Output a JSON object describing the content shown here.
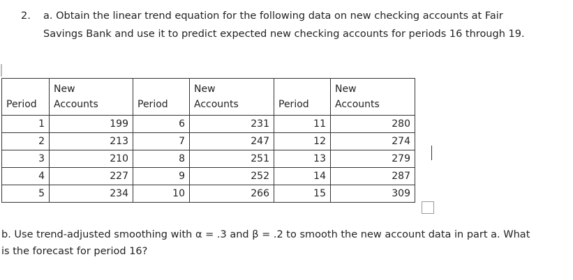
{
  "question_a": {
    "number": "2.",
    "line1": "a. Obtain the linear trend equation for the following data on new checking accounts at Fair",
    "line2": "Savings Bank and use it to predict expected new checking accounts for periods 16 through 19."
  },
  "table": {
    "headers": [
      [
        "",
        "Period"
      ],
      [
        "New",
        "Accounts"
      ],
      [
        "",
        "Period"
      ],
      [
        "New",
        "Accounts"
      ],
      [
        "",
        "Period"
      ],
      [
        "New",
        "Accounts"
      ]
    ],
    "rows": [
      [
        "1",
        "199",
        "6",
        "231",
        "11",
        "280"
      ],
      [
        "2",
        "213",
        "7",
        "247",
        "12",
        "274"
      ],
      [
        "3",
        "210",
        "8",
        "251",
        "13",
        "279"
      ],
      [
        "4",
        "227",
        "9",
        "252",
        "14",
        "287"
      ],
      [
        "5",
        "234",
        "10",
        "266",
        "15",
        "309"
      ]
    ]
  },
  "question_b": {
    "line1": "b. Use trend-adjusted smoothing with α = .3 and β = .2 to smooth the new account data in part a. What",
    "line2": "is the forecast for period 16?"
  }
}
